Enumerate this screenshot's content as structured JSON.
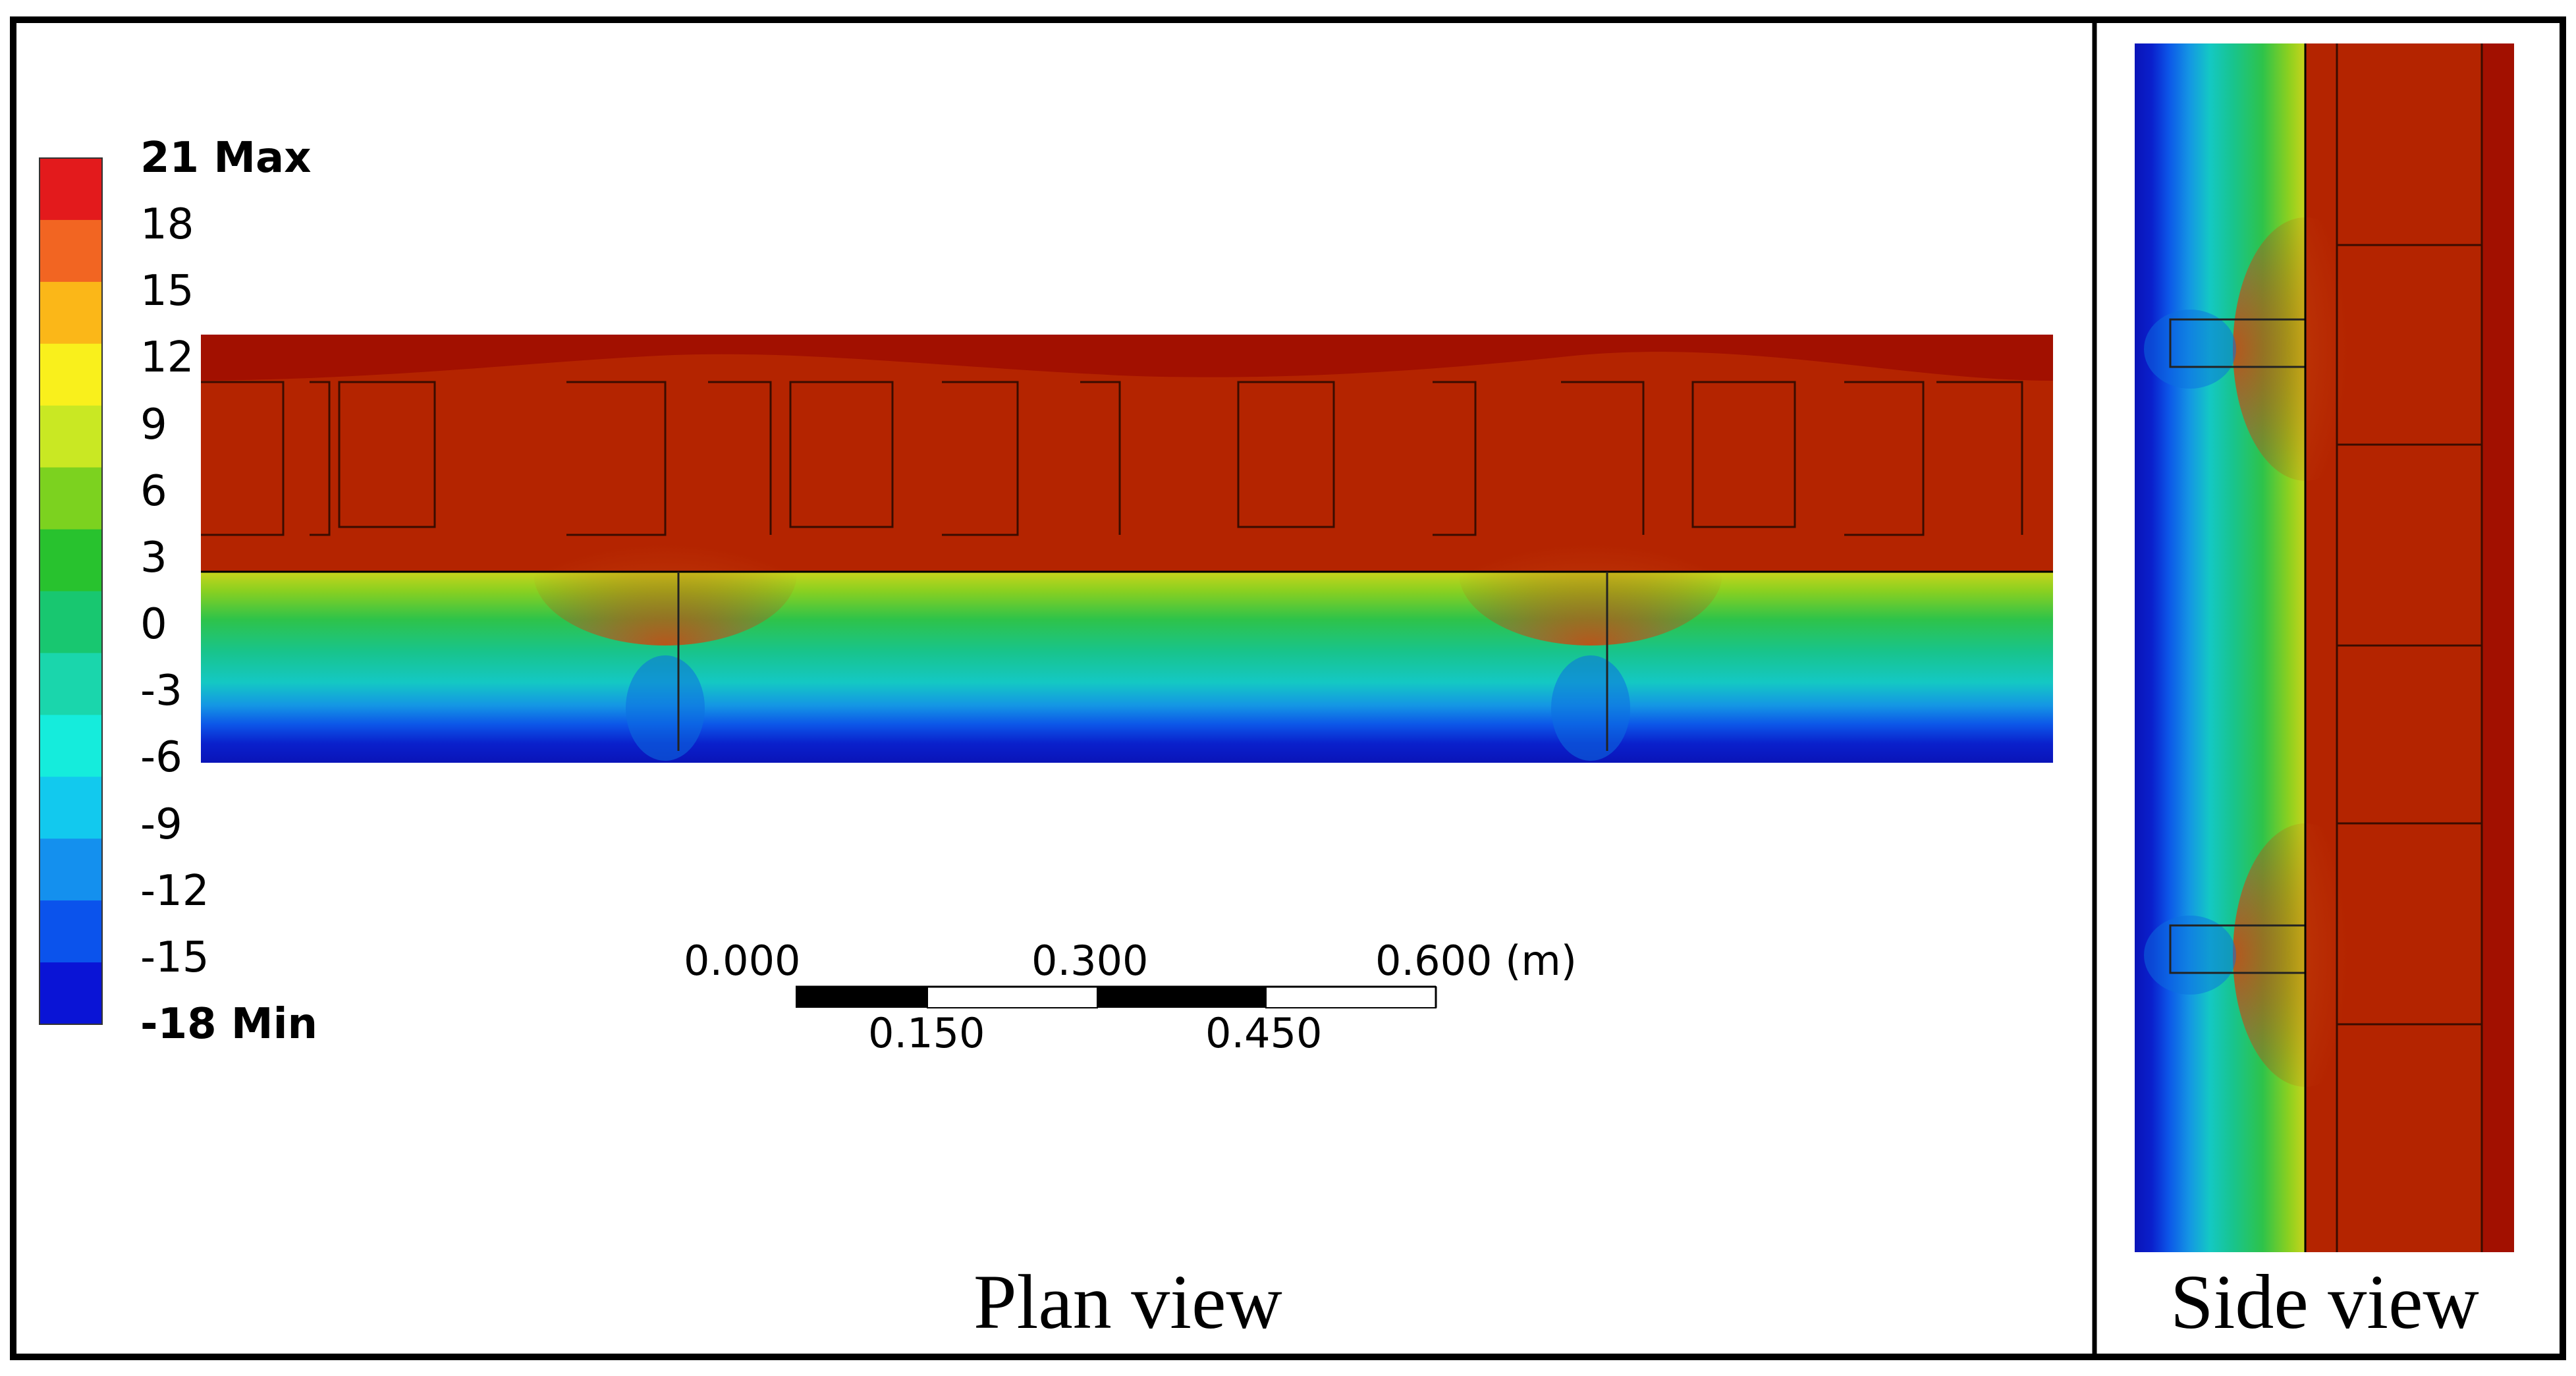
{
  "legend": {
    "ticks": [
      {
        "text": "21 Max",
        "bold": true
      },
      {
        "text": "18",
        "bold": false
      },
      {
        "text": "15",
        "bold": false
      },
      {
        "text": "12",
        "bold": false
      },
      {
        "text": "9",
        "bold": false
      },
      {
        "text": "6",
        "bold": false
      },
      {
        "text": "3",
        "bold": false
      },
      {
        "text": "0",
        "bold": false
      },
      {
        "text": "-3",
        "bold": false
      },
      {
        "text": "-6",
        "bold": false
      },
      {
        "text": "-9",
        "bold": false
      },
      {
        "text": "-12",
        "bold": false
      },
      {
        "text": "-15",
        "bold": false
      },
      {
        "text": "-18 Min",
        "bold": true
      }
    ],
    "bands": [
      "#e31a1c",
      "#f26522",
      "#fbb718",
      "#f9f01c",
      "#c9e823",
      "#7cd21f",
      "#28c22e",
      "#18c770",
      "#1ad6ac",
      "#15ecdc",
      "#12c9ee",
      "#1490ee",
      "#0b53ec",
      "#0a14d6"
    ]
  },
  "scale_bar": {
    "top_labels": [
      "0.000",
      "0.300",
      "0.600 (m)"
    ],
    "bottom_labels": [
      "0.150",
      "0.450"
    ]
  },
  "captions": {
    "plan": "Plan view",
    "side": "Side view"
  },
  "colors": {
    "hot": "#a81400",
    "warm": "#b82a00",
    "cold": "#0a14c8"
  }
}
